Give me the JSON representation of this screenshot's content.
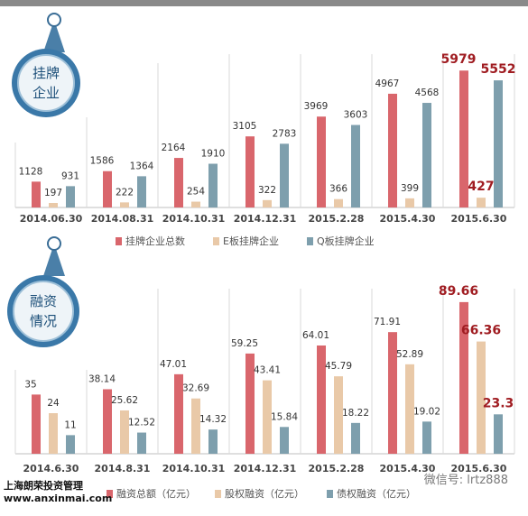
{
  "badges": [
    {
      "line1": "挂牌",
      "line2": "企业"
    },
    {
      "line1": "融资",
      "line2": "情况"
    }
  ],
  "footer": {
    "line1": "上海朗荣投资管理",
    "line2": "www.anxinmai.com"
  },
  "watermark": "微信号: lrtz888",
  "colors": {
    "red": "#d9666c",
    "beige": "#e9c9a8",
    "blue": "#7e9fad",
    "highlight": "#a01d22"
  },
  "chart_data": [
    {
      "type": "bar",
      "title": "",
      "categories": [
        "2014.06.30",
        "2014.08.31",
        "2014.10.31",
        "2014.12.31",
        "2015.2.28",
        "2015.4.30",
        "2015.6.30"
      ],
      "series": [
        {
          "name": "挂牌企业总数",
          "values": [
            1128,
            1586,
            2164,
            3105,
            3969,
            4967,
            5979
          ]
        },
        {
          "name": "E板挂牌企业",
          "values": [
            197,
            222,
            254,
            322,
            366,
            399,
            427
          ]
        },
        {
          "name": "Q板挂牌企业",
          "values": [
            931,
            1364,
            1910,
            2783,
            3603,
            4568,
            5552
          ]
        }
      ],
      "ylim": [
        0,
        6500
      ],
      "legend": "bottom",
      "grid": false
    },
    {
      "type": "bar",
      "title": "",
      "categories": [
        "2014.6.30",
        "2014.8.31",
        "2014.10.31",
        "2014.12.31",
        "2015.2.28",
        "2015.4.30",
        "2015.6.30"
      ],
      "series": [
        {
          "name": "融资总额（亿元）",
          "values": [
            35,
            38.14,
            47.01,
            59.25,
            64.01,
            71.91,
            89.66
          ]
        },
        {
          "name": "股权融资（亿元）",
          "values": [
            24,
            25.62,
            32.69,
            43.41,
            45.79,
            52.89,
            66.36
          ]
        },
        {
          "name": "债权融资（亿元）",
          "values": [
            11,
            12.52,
            14.32,
            15.84,
            18.22,
            19.02,
            23.3
          ]
        }
      ],
      "ylim": [
        0,
        96
      ],
      "legend": "bottom",
      "grid": false
    }
  ]
}
